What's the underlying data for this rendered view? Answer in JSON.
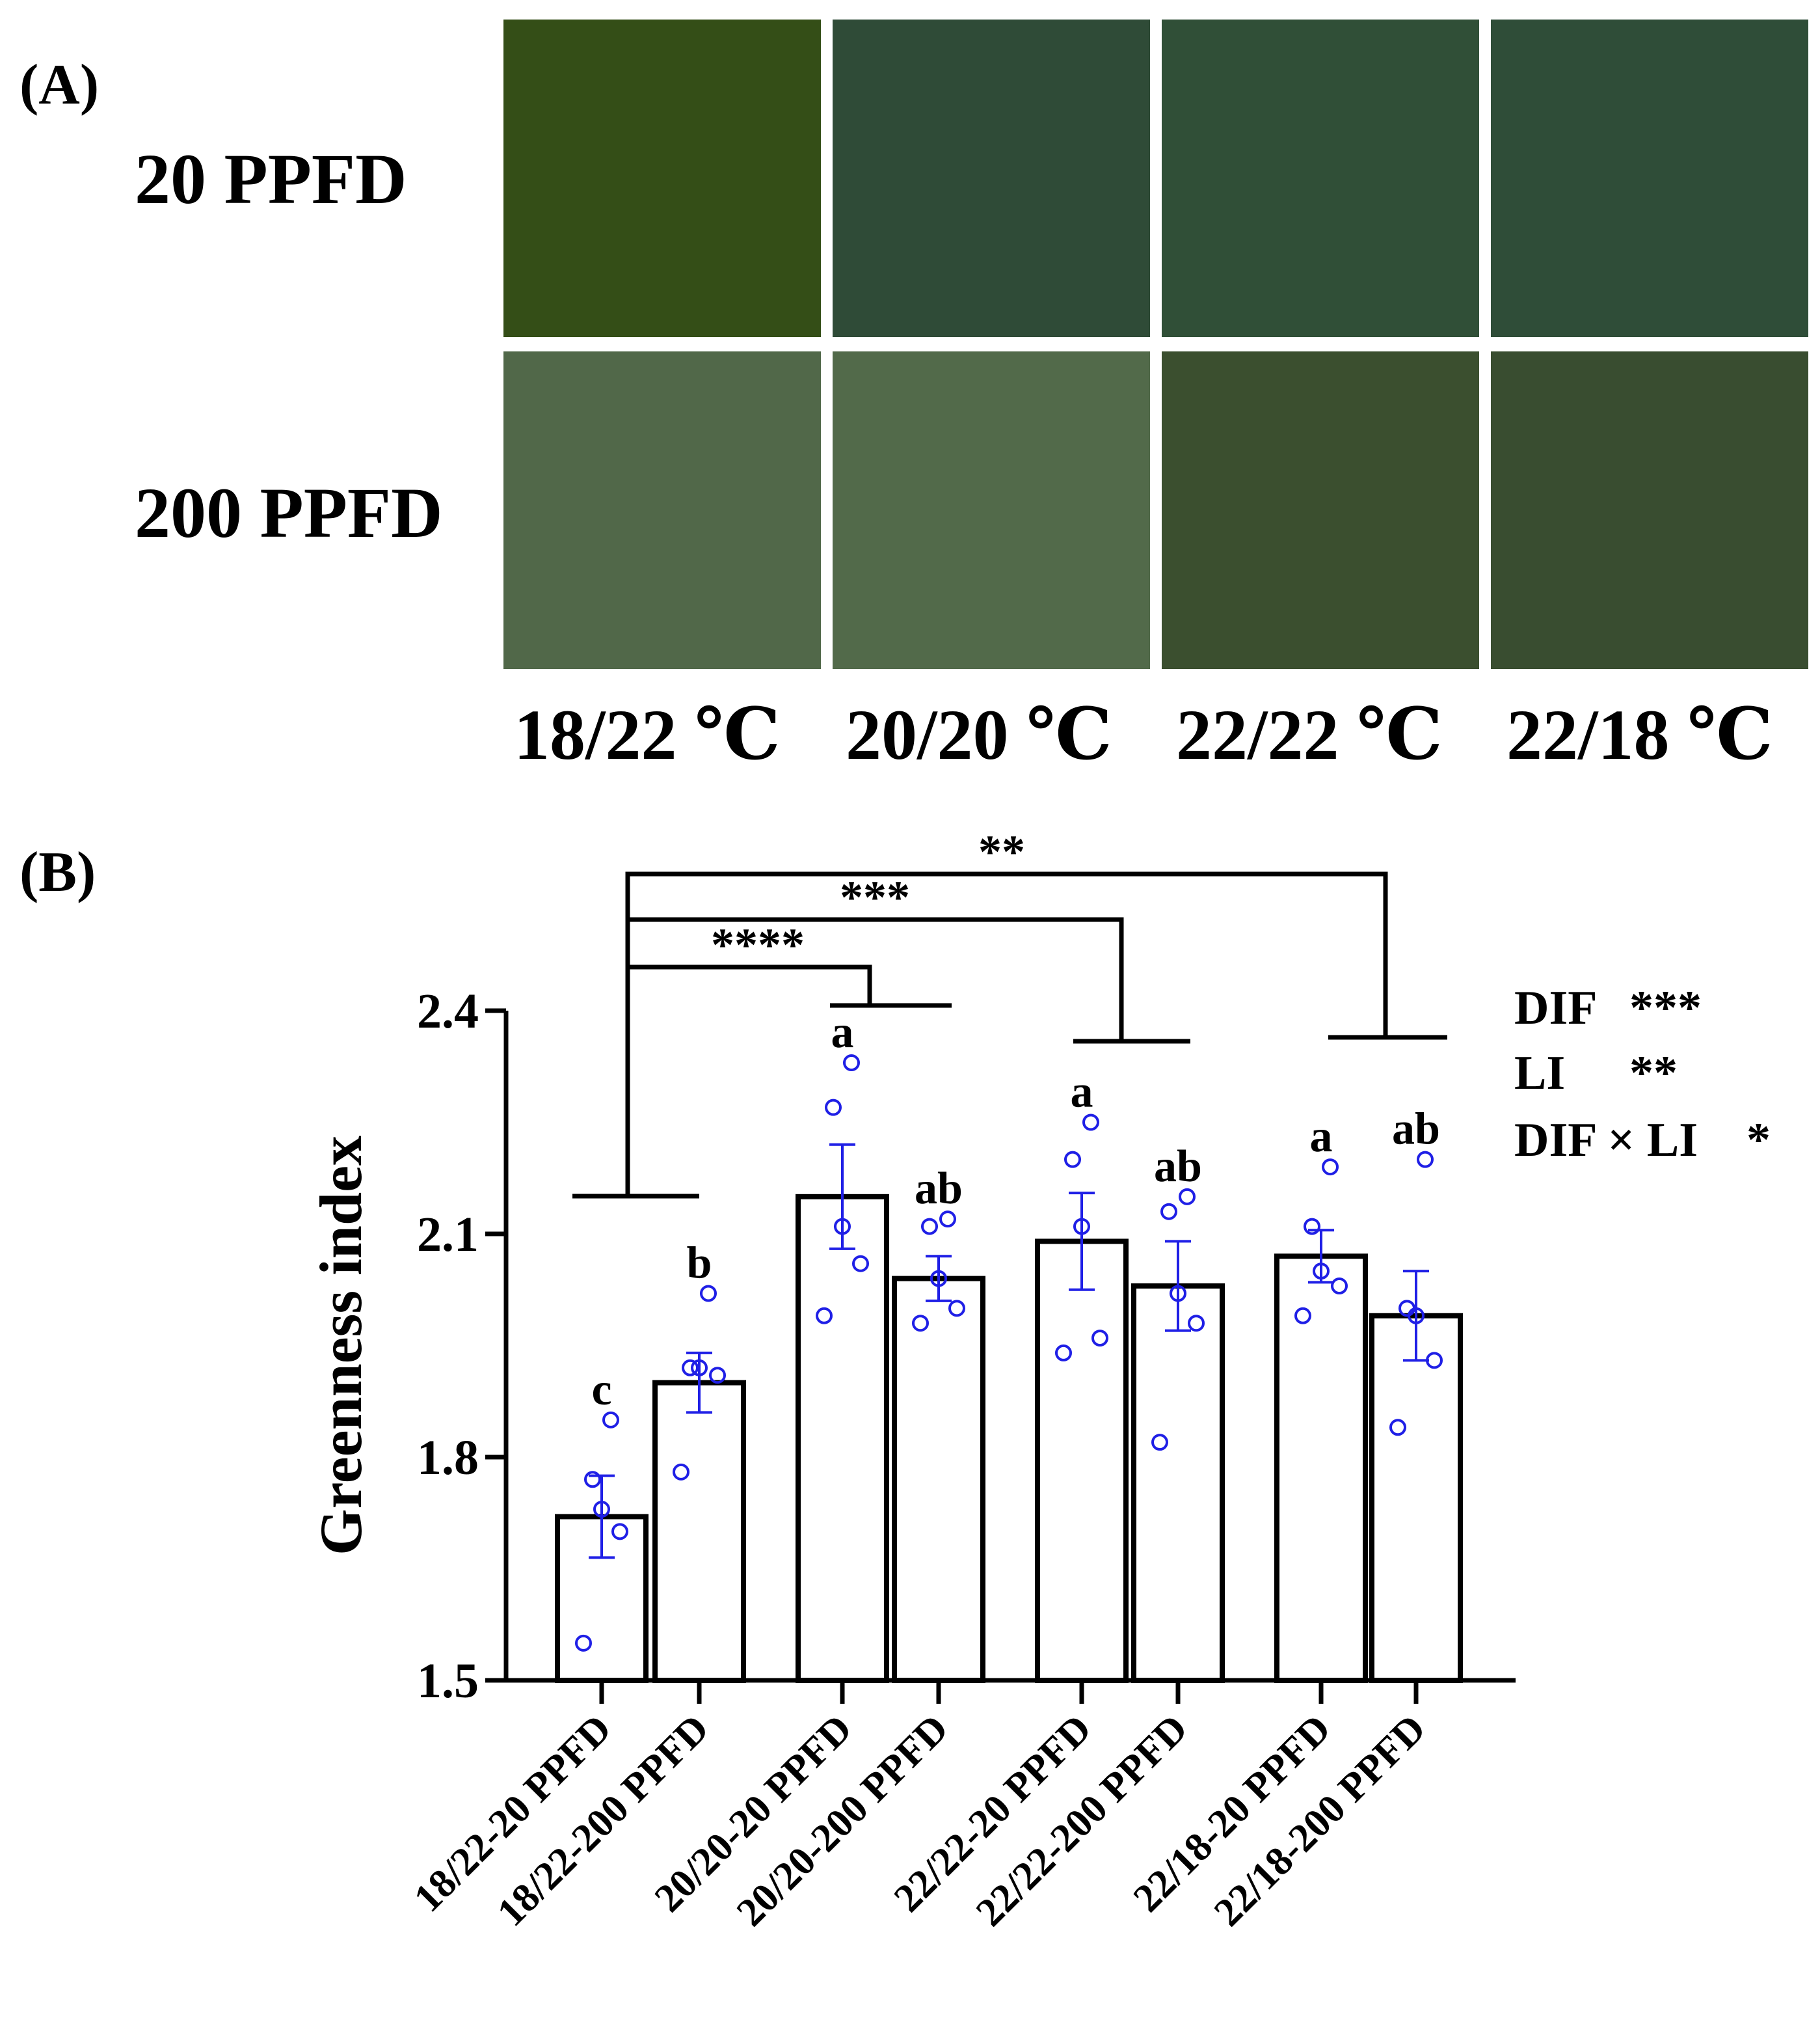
{
  "panel_a": {
    "label": "(A)",
    "row_labels": [
      "20 PPFD",
      "200 PPFD"
    ],
    "col_labels": [
      "18/22 ℃",
      "20/20 ℃",
      "22/22 ℃",
      "22/18 ℃"
    ],
    "swatch_colors": [
      [
        "#344e17",
        "#2f4b37",
        "#304f37",
        "#2f4d38"
      ],
      [
        "#516849",
        "#526a4a",
        "#3b4f2f",
        "#394d30"
      ]
    ]
  },
  "panel_b": {
    "label": "(B)",
    "stats": [
      {
        "term": "DIF",
        "sig": "***"
      },
      {
        "term": "LI",
        "sig": "**"
      },
      {
        "term": "DIF × LI",
        "sig": "*"
      }
    ],
    "comparison_brackets": [
      {
        "from": "18/22",
        "to": "22/18",
        "sig": "**"
      },
      {
        "from": "18/22",
        "to": "22/22",
        "sig": "***"
      },
      {
        "from": "18/22",
        "to": "20/20",
        "sig": "****"
      }
    ]
  },
  "chart_data": {
    "type": "bar",
    "title": "",
    "xlabel": "",
    "ylabel": "Greenness index",
    "ylim": [
      1.5,
      2.4
    ],
    "yticks": [
      1.5,
      1.8,
      2.1,
      2.4
    ],
    "ytick_labels": [
      "1.5",
      "1.8",
      "2.1",
      "2.4"
    ],
    "categories": [
      "18/22-20 PPFD",
      "18/22-200 PPFD",
      "20/20-20 PPFD",
      "20/20-200 PPFD",
      "22/22-20 PPFD",
      "22/22-200 PPFD",
      "22/18-20 PPFD",
      "22/18-200 PPFD"
    ],
    "values": [
      1.72,
      1.9,
      2.15,
      2.04,
      2.09,
      2.03,
      2.07,
      1.99
    ],
    "errors": [
      0.055,
      0.04,
      0.07,
      0.03,
      0.065,
      0.06,
      0.035,
      0.06
    ],
    "letters": [
      "c",
      "b",
      "a",
      "ab",
      "a",
      "ab",
      "a",
      "ab"
    ],
    "points": [
      [
        1.55,
        1.7,
        1.73,
        1.77,
        1.85
      ],
      [
        1.78,
        1.91,
        1.92,
        1.92,
        2.02
      ],
      [
        1.99,
        2.06,
        2.11,
        2.27,
        2.33
      ],
      [
        1.98,
        2.0,
        2.04,
        2.11,
        2.12
      ],
      [
        1.94,
        1.96,
        2.11,
        2.2,
        2.25
      ],
      [
        1.82,
        1.98,
        2.02,
        2.13,
        2.15
      ],
      [
        1.99,
        2.03,
        2.05,
        2.11,
        2.19
      ],
      [
        1.84,
        1.93,
        1.99,
        2.0,
        2.2
      ]
    ],
    "bar_color": "#ffffff",
    "bar_edge_color": "#000000",
    "point_color": "#1f1fe6"
  }
}
